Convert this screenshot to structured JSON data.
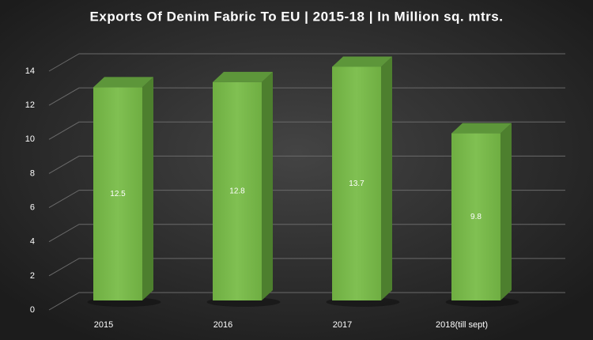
{
  "chart_data": {
    "type": "bar3d",
    "title": "Exports Of Denim Fabric To EU | 2015-18 | In Million sq. mtrs.",
    "categories": [
      "2015",
      "2016",
      "2017",
      "2018(till sept)"
    ],
    "values": [
      12.5,
      12.8,
      13.7,
      9.8
    ],
    "color": "#7ab648",
    "ylim": [
      0,
      14
    ],
    "yticks": [
      0,
      2,
      4,
      6,
      8,
      10,
      12,
      14
    ],
    "grid": true
  }
}
